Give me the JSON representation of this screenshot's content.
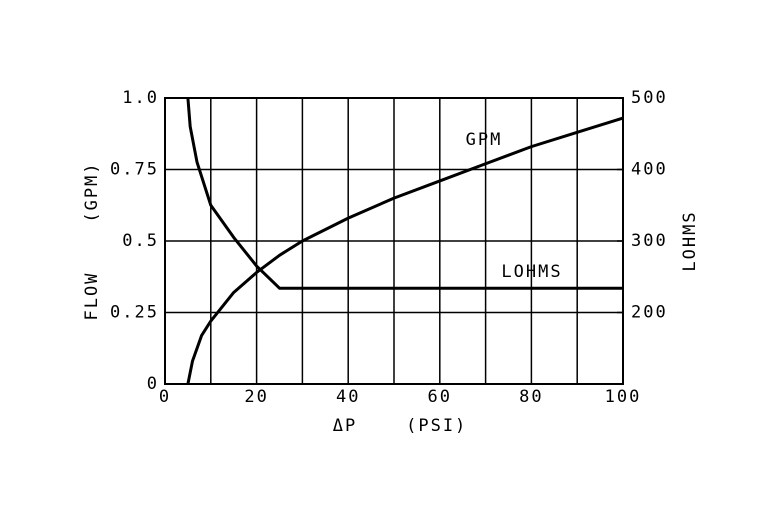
{
  "chart_data": {
    "type": "line",
    "x_label": "ΔP    (PSI)",
    "y_label": "FLOW    (GPM)",
    "y2_label": "LOHMS",
    "xlim": [
      0,
      100
    ],
    "xticks": [
      0,
      20,
      40,
      60,
      80,
      100
    ],
    "xminor": [
      10,
      30,
      50,
      70,
      90
    ],
    "ylim": [
      0,
      1
    ],
    "yticks": [
      {
        "value": 0,
        "label": "0"
      },
      0.25,
      0.5,
      0.75,
      {
        "value": 1,
        "label": "1.0"
      }
    ],
    "y2lim": [
      100,
      500
    ],
    "y2ticks": [
      200,
      300,
      400,
      500
    ],
    "grid": true,
    "series": [
      {
        "name": "GPM",
        "color": "#000000",
        "x": [
          5,
          6,
          8,
          10,
          15,
          20,
          25,
          30,
          40,
          50,
          60,
          70,
          80,
          90,
          100
        ],
        "values": [
          0,
          0.08,
          0.17,
          0.22,
          0.32,
          0.39,
          0.45,
          0.5,
          0.58,
          0.65,
          0.71,
          0.77,
          0.83,
          0.88,
          0.93
        ]
      },
      {
        "name": "LOHMS",
        "color": "#000000",
        "axis": "y2",
        "x": [
          5,
          5.5,
          7,
          10,
          15,
          20,
          25,
          100
        ],
        "values": [
          500,
          460,
          410,
          350,
          305,
          265,
          234,
          234
        ]
      }
    ]
  }
}
